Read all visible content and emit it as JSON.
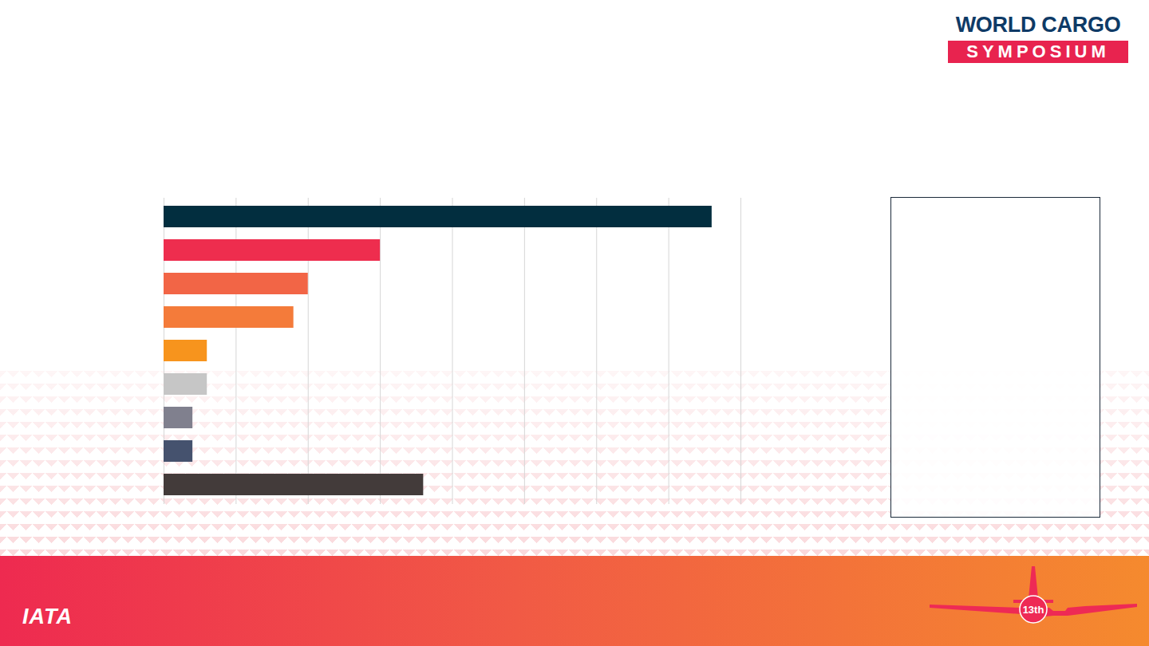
{
  "chart_data": {
    "type": "bar",
    "orientation": "horizontal",
    "categories": [
      null,
      null,
      null,
      null,
      null,
      null,
      null,
      null,
      null
    ],
    "values": [
      7.6,
      3.0,
      2.0,
      1.8,
      0.6,
      0.6,
      0.4,
      0.4,
      3.6
    ],
    "colors": [
      "#022e3f",
      "#ee2d4e",
      "#f26546",
      "#f47b3a",
      "#f7941d",
      "#c6c6c6",
      "#80808e",
      "#45526e",
      "#433b3a"
    ],
    "xlim": [
      0,
      8
    ],
    "xticks": [
      0,
      1,
      2,
      3,
      4,
      5,
      6,
      7,
      8
    ],
    "grid": true,
    "tick_labels": false
  },
  "branding": {
    "event_name_line1": "WORLD CARGO",
    "event_name_line2": "SYMPOSIUM",
    "organisation": "IATA",
    "edition": "13th"
  }
}
